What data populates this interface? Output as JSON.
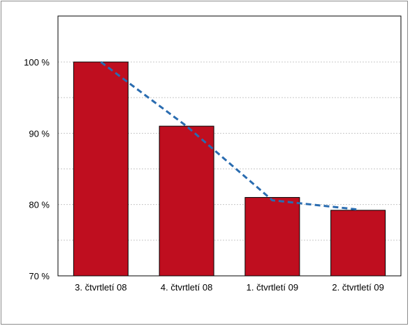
{
  "chart_data": {
    "type": "bar",
    "title": "",
    "xlabel": "",
    "ylabel": "",
    "categories": [
      "3. čtvrtletí 08",
      "4. čtvrtletí 08",
      "1. čtvrtletí 09",
      "2. čtvrtletí 09"
    ],
    "values": [
      100,
      91,
      81,
      79.2
    ],
    "trend_line": {
      "style": "dashed",
      "values": [
        100,
        91,
        80.6,
        79.3
      ]
    },
    "ylim": [
      70,
      100
    ],
    "yticks": [
      70,
      80,
      90,
      100
    ],
    "ytick_labels": [
      "70 %",
      "80 %",
      "90 %",
      "100 %"
    ],
    "grid": true,
    "legend": "none",
    "colors": {
      "bar_fill": "#bf0e1f",
      "bar_stroke": "#000000",
      "trend_line": "#2a6cb0",
      "gridline": "#c8c8c8",
      "axis": "#000000"
    }
  }
}
